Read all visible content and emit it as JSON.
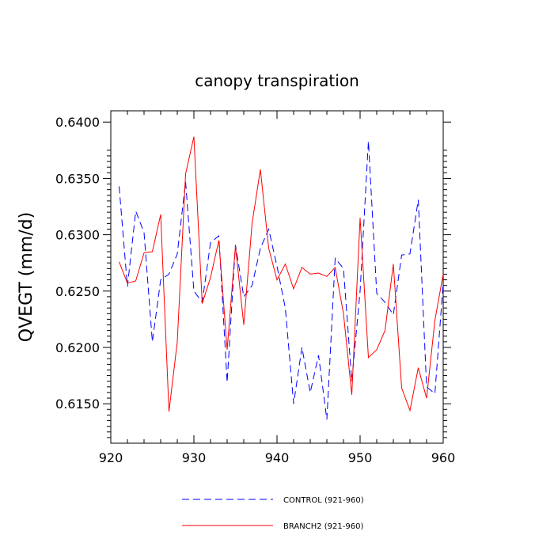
{
  "chart_data": {
    "type": "line",
    "title": "canopy transpiration",
    "ylabel": "QVEGT  (mm/d)",
    "xlabel": "",
    "xlim": [
      920,
      960
    ],
    "ylim": [
      0.6115,
      0.641
    ],
    "x_ticks": [
      920,
      930,
      940,
      950,
      960
    ],
    "y_ticks": [
      0.615,
      0.62,
      0.625,
      0.63,
      0.635,
      0.64
    ],
    "x_tick_labels": [
      "920",
      "930",
      "940",
      "950",
      "960"
    ],
    "y_tick_labels": [
      "0.6150",
      "0.6200",
      "0.6250",
      "0.6300",
      "0.6350",
      "0.6400"
    ],
    "grid": false,
    "legend_position": "bottom",
    "series": [
      {
        "name": "CONTROL (921-960)",
        "color": "#0000ff",
        "style": "dashed",
        "x": [
          921,
          922,
          923,
          924,
          925,
          926,
          927,
          928,
          929,
          930,
          931,
          932,
          933,
          934,
          935,
          936,
          937,
          938,
          939,
          940,
          941,
          942,
          943,
          944,
          945,
          946,
          947,
          948,
          949,
          950,
          951,
          952,
          953,
          954,
          955,
          956,
          957,
          958,
          959,
          960
        ],
        "values": [
          0.6343,
          0.6254,
          0.6321,
          0.6302,
          0.6205,
          0.626,
          0.6265,
          0.6283,
          0.6347,
          0.625,
          0.624,
          0.6293,
          0.6299,
          0.6169,
          0.6291,
          0.6245,
          0.6255,
          0.6288,
          0.6305,
          0.6272,
          0.6235,
          0.615,
          0.62,
          0.616,
          0.6193,
          0.6136,
          0.6279,
          0.627,
          0.617,
          0.625,
          0.6383,
          0.6248,
          0.624,
          0.6229,
          0.6282,
          0.6283,
          0.6331,
          0.6165,
          0.6159,
          0.6257
        ]
      },
      {
        "name": "BRANCH2 (921-960)",
        "color": "#ff0000",
        "style": "solid",
        "x": [
          921,
          922,
          923,
          924,
          925,
          926,
          927,
          928,
          929,
          930,
          931,
          932,
          933,
          934,
          935,
          936,
          937,
          938,
          939,
          940,
          941,
          942,
          943,
          944,
          945,
          946,
          947,
          948,
          949,
          950,
          951,
          952,
          953,
          954,
          955,
          956,
          957,
          958,
          959,
          960
        ],
        "values": [
          0.6276,
          0.6257,
          0.6259,
          0.6284,
          0.6285,
          0.6318,
          0.6143,
          0.6205,
          0.6354,
          0.6387,
          0.6239,
          0.6262,
          0.6295,
          0.6198,
          0.629,
          0.622,
          0.631,
          0.6358,
          0.6288,
          0.626,
          0.6274,
          0.6252,
          0.6271,
          0.6265,
          0.6266,
          0.6263,
          0.6271,
          0.623,
          0.6158,
          0.6315,
          0.6191,
          0.6198,
          0.6215,
          0.6274,
          0.6164,
          0.6144,
          0.6182,
          0.6155,
          0.6224,
          0.6265
        ]
      }
    ]
  }
}
